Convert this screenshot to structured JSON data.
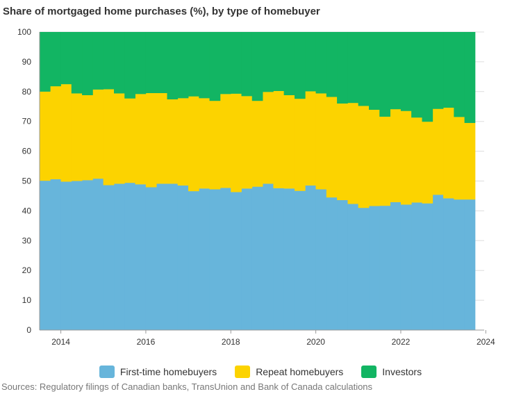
{
  "chart_data": {
    "type": "area",
    "stacked": true,
    "step": true,
    "title": "Share of mortgaged home purchases (%), by type of homebuyer",
    "xlabel": "",
    "ylabel": "",
    "ylim": [
      0,
      100
    ],
    "yticks": [
      "0",
      "10",
      "20",
      "30",
      "40",
      "50",
      "60",
      "70",
      "80",
      "90",
      "100"
    ],
    "xticks": [
      "2014",
      "2016",
      "2018",
      "2020",
      "2022",
      "2024"
    ],
    "x_start": "2013Q3",
    "x_frequency": "quarterly",
    "series": [
      {
        "name": "First-time homebuyers",
        "color": "#67b5db",
        "values": [
          50.1,
          50.6,
          49.8,
          50.0,
          50.3,
          50.8,
          48.6,
          49.1,
          49.4,
          48.9,
          47.9,
          49.1,
          49.1,
          48.5,
          46.6,
          47.5,
          47.2,
          47.7,
          46.3,
          47.5,
          48.1,
          49.1,
          47.6,
          47.5,
          46.7,
          48.5,
          47.2,
          44.5,
          43.6,
          42.3,
          41.0,
          41.6,
          41.7,
          42.9,
          42.1,
          42.8,
          42.5,
          45.4,
          44.2,
          43.8,
          43.8
        ]
      },
      {
        "name": "Repeat homebuyers",
        "color": "#fcd300",
        "values": [
          29.9,
          31.2,
          32.7,
          29.4,
          28.5,
          29.9,
          32.2,
          30.3,
          28.3,
          30.3,
          31.6,
          30.4,
          28.3,
          29.3,
          31.8,
          30.3,
          29.7,
          31.5,
          33.0,
          31.0,
          28.8,
          30.8,
          32.6,
          31.3,
          30.9,
          31.6,
          32.2,
          33.7,
          32.4,
          33.9,
          34.2,
          32.3,
          29.9,
          31.2,
          31.4,
          28.5,
          27.4,
          28.8,
          30.4,
          27.7,
          25.7
        ]
      },
      {
        "name": "Investors",
        "color": "#12b563",
        "values": [
          20.0,
          18.2,
          17.5,
          20.6,
          21.2,
          19.3,
          19.2,
          20.6,
          22.3,
          20.8,
          20.5,
          20.5,
          22.6,
          22.2,
          21.6,
          22.2,
          23.1,
          20.8,
          20.7,
          21.5,
          23.1,
          20.1,
          19.8,
          21.2,
          22.4,
          19.9,
          20.6,
          21.8,
          24.0,
          23.8,
          24.8,
          26.1,
          28.4,
          25.9,
          26.5,
          28.7,
          30.1,
          25.8,
          25.4,
          28.5,
          30.5
        ]
      }
    ],
    "legend_position": "bottom",
    "grid": true
  },
  "sources": "Sources: Regulatory filings of Canadian banks, TransUnion and Bank of Canada calculations"
}
